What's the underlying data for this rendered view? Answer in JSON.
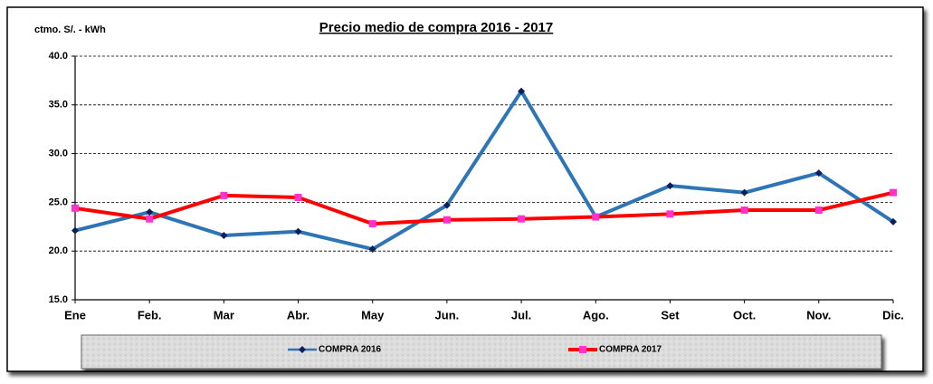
{
  "chart_data": {
    "type": "line",
    "title": "Precio medio de compra 2016 - 2017",
    "y_label": "ctmo. S/. - kWh",
    "categories": [
      "Ene",
      "Feb.",
      "Mar",
      "Abr.",
      "May",
      "Jun.",
      "Jul.",
      "Ago.",
      "Set",
      "Oct.",
      "Nov.",
      "Dic."
    ],
    "series": [
      {
        "name": "COMPRA 2016",
        "color": "#2e75b6",
        "marker_color": "#0b1f5c",
        "marker": "diamond",
        "values": [
          22.1,
          24.0,
          21.6,
          22.0,
          20.2,
          24.7,
          36.4,
          23.5,
          26.7,
          26.0,
          28.0,
          23.0
        ]
      },
      {
        "name": "COMPRA 2017",
        "color": "#ff0000",
        "marker_color": "#ff33cc",
        "marker": "square",
        "values": [
          24.4,
          23.3,
          25.7,
          25.5,
          22.8,
          23.2,
          23.3,
          23.5,
          23.8,
          24.2,
          24.2,
          26.0
        ]
      }
    ],
    "ylim": [
      15,
      40
    ],
    "yticks": [
      {
        "value": 15,
        "label": "15.0"
      },
      {
        "value": 20,
        "label": "20.0"
      },
      {
        "value": 25,
        "label": "25.0"
      },
      {
        "value": 30,
        "label": "30.0"
      },
      {
        "value": 35,
        "label": "35.0"
      },
      {
        "value": 40,
        "label": "40.0"
      }
    ],
    "grid": true
  }
}
